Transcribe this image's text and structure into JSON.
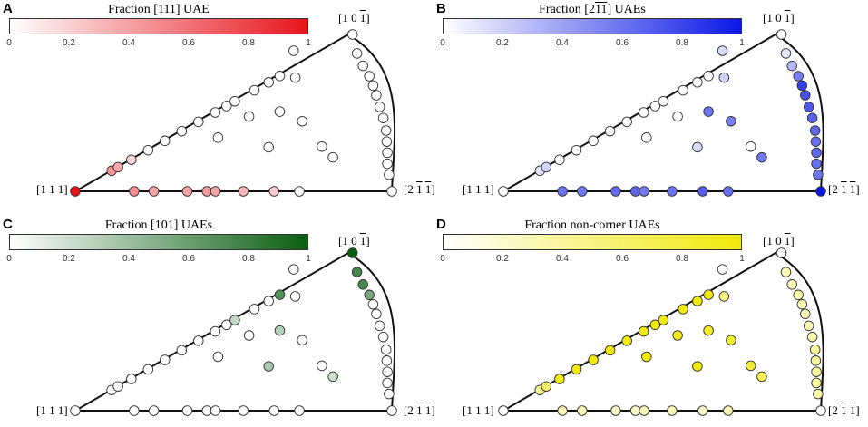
{
  "chart_data": [
    {
      "type": "scatter",
      "panel_label": "A",
      "colorbar": {
        "title_prefix": "Fraction [111] UAE",
        "title_overline": "",
        "title_suffix": "",
        "color_min": "#ffffff",
        "color_max": "#e8141c",
        "ticks": [
          "0",
          "0.2",
          "0.4",
          "0.6",
          "0.8",
          "1"
        ]
      },
      "corners": {
        "c111": "[1 1 1]",
        "c101_a": "[1 0 ",
        "c101_b": "1",
        "c101_c": "]",
        "c211_a": "[2 ",
        "c211_b": "1",
        "c211_c": " ",
        "c211_d": "1",
        "c211_e": "]"
      },
      "points": [
        {
          "u": 0.0,
          "v": 0.0,
          "f": 1.0
        },
        {
          "u": 0.186,
          "v": 0.0,
          "f": 0.48
        },
        {
          "u": 0.248,
          "v": 0.0,
          "f": 0.4
        },
        {
          "u": 0.354,
          "v": 0.0,
          "f": 0.38
        },
        {
          "u": 0.416,
          "v": 0.0,
          "f": 0.42
        },
        {
          "u": 0.443,
          "v": 0.0,
          "f": 0.38
        },
        {
          "u": 0.531,
          "v": 0.0,
          "f": 0.32
        },
        {
          "u": 0.628,
          "v": 0.0,
          "f": 0.22
        },
        {
          "u": 0.708,
          "v": 0.0,
          "f": 0.0
        },
        {
          "u": 0.115,
          "v": 0.131,
          "f": 0.45
        },
        {
          "u": 0.135,
          "v": 0.154,
          "f": 0.38
        },
        {
          "u": 0.177,
          "v": 0.201,
          "f": 0.18
        },
        {
          "u": 0.23,
          "v": 0.262,
          "f": 0.0
        },
        {
          "u": 0.283,
          "v": 0.322,
          "f": 0.0
        },
        {
          "u": 0.336,
          "v": 0.383,
          "f": 0.0
        },
        {
          "u": 0.389,
          "v": 0.443,
          "f": 0.0
        },
        {
          "u": 0.442,
          "v": 0.503,
          "f": 0.0
        },
        {
          "u": 0.478,
          "v": 0.544,
          "f": 0.0
        },
        {
          "u": 0.504,
          "v": 0.574,
          "f": 0.0
        },
        {
          "u": 0.566,
          "v": 0.644,
          "f": 0.0
        },
        {
          "u": 0.611,
          "v": 0.695,
          "f": 0.0
        },
        {
          "u": 0.646,
          "v": 0.735,
          "f": 0.0
        },
        {
          "u": 0.695,
          "v": 0.725,
          "f": 0.0
        },
        {
          "u": 0.69,
          "v": 0.896,
          "f": 0.0
        },
        {
          "u": 0.876,
          "v": 1.0,
          "f": 0.0
        },
        {
          "u": 0.89,
          "v": 0.879,
          "f": 0.0
        },
        {
          "u": 0.909,
          "v": 0.8,
          "f": 0.0
        },
        {
          "u": 0.929,
          "v": 0.734,
          "f": 0.0
        },
        {
          "u": 0.941,
          "v": 0.674,
          "f": 0.0
        },
        {
          "u": 0.951,
          "v": 0.613,
          "f": 0.0
        },
        {
          "u": 0.962,
          "v": 0.538,
          "f": 0.0
        },
        {
          "u": 0.973,
          "v": 0.467,
          "f": 0.0
        },
        {
          "u": 0.982,
          "v": 0.387,
          "f": 0.0
        },
        {
          "u": 0.984,
          "v": 0.317,
          "f": 0.0
        },
        {
          "u": 0.986,
          "v": 0.246,
          "f": 0.0
        },
        {
          "u": 0.986,
          "v": 0.176,
          "f": 0.0
        },
        {
          "u": 0.991,
          "v": 0.106,
          "f": 0.0
        },
        {
          "u": 1.0,
          "v": 0.0,
          "f": 0.0
        },
        {
          "u": 0.451,
          "v": 0.342,
          "f": 0.0
        },
        {
          "u": 0.549,
          "v": 0.477,
          "f": 0.0
        },
        {
          "u": 0.646,
          "v": 0.508,
          "f": 0.0
        },
        {
          "u": 0.717,
          "v": 0.447,
          "f": 0.0
        },
        {
          "u": 0.611,
          "v": 0.281,
          "f": 0.0
        },
        {
          "u": 0.779,
          "v": 0.285,
          "f": 0.0
        },
        {
          "u": 0.814,
          "v": 0.216,
          "f": 0.0
        }
      ]
    },
    {
      "type": "scatter",
      "panel_label": "B",
      "colorbar": {
        "title_prefix": "Fraction [2",
        "title_overline": "11",
        "title_suffix": "] UAEs",
        "color_min": "#ffffff",
        "color_max": "#0b17e6",
        "ticks": [
          "0",
          "0.2",
          "0.4",
          "0.6",
          "0.8",
          "1"
        ]
      },
      "corners": {
        "c111": "[1 1 1]",
        "c101_a": "[1 0 ",
        "c101_b": "1",
        "c101_c": "]",
        "c211_a": "[2 ",
        "c211_b": "1",
        "c211_c": " ",
        "c211_d": "1",
        "c211_e": "]"
      },
      "points": [
        {
          "u": 0.0,
          "v": 0.0,
          "f": 0.0
        },
        {
          "u": 0.186,
          "v": 0.0,
          "f": 0.6
        },
        {
          "u": 0.248,
          "v": 0.0,
          "f": 0.58
        },
        {
          "u": 0.354,
          "v": 0.0,
          "f": 0.64
        },
        {
          "u": 0.416,
          "v": 0.0,
          "f": 0.66
        },
        {
          "u": 0.443,
          "v": 0.0,
          "f": 0.58
        },
        {
          "u": 0.531,
          "v": 0.0,
          "f": 0.6
        },
        {
          "u": 0.628,
          "v": 0.0,
          "f": 0.7
        },
        {
          "u": 0.708,
          "v": 0.0,
          "f": 0.62
        },
        {
          "u": 0.115,
          "v": 0.131,
          "f": 0.12
        },
        {
          "u": 0.135,
          "v": 0.154,
          "f": 0.18
        },
        {
          "u": 0.177,
          "v": 0.201,
          "f": 0.0
        },
        {
          "u": 0.23,
          "v": 0.262,
          "f": 0.0
        },
        {
          "u": 0.283,
          "v": 0.322,
          "f": 0.0
        },
        {
          "u": 0.336,
          "v": 0.383,
          "f": 0.0
        },
        {
          "u": 0.389,
          "v": 0.443,
          "f": 0.0
        },
        {
          "u": 0.442,
          "v": 0.503,
          "f": 0.0
        },
        {
          "u": 0.478,
          "v": 0.544,
          "f": 0.0
        },
        {
          "u": 0.504,
          "v": 0.574,
          "f": 0.0
        },
        {
          "u": 0.566,
          "v": 0.644,
          "f": 0.0
        },
        {
          "u": 0.611,
          "v": 0.695,
          "f": 0.0
        },
        {
          "u": 0.646,
          "v": 0.735,
          "f": 0.0
        },
        {
          "u": 0.695,
          "v": 0.725,
          "f": 0.2
        },
        {
          "u": 0.69,
          "v": 0.896,
          "f": 0.15
        },
        {
          "u": 0.876,
          "v": 1.0,
          "f": 0.0
        },
        {
          "u": 0.89,
          "v": 0.879,
          "f": 0.12
        },
        {
          "u": 0.909,
          "v": 0.8,
          "f": 0.3
        },
        {
          "u": 0.929,
          "v": 0.734,
          "f": 0.55
        },
        {
          "u": 0.941,
          "v": 0.674,
          "f": 0.82
        },
        {
          "u": 0.951,
          "v": 0.613,
          "f": 0.75
        },
        {
          "u": 0.962,
          "v": 0.538,
          "f": 0.72
        },
        {
          "u": 0.973,
          "v": 0.467,
          "f": 0.68
        },
        {
          "u": 0.982,
          "v": 0.387,
          "f": 0.65
        },
        {
          "u": 0.984,
          "v": 0.317,
          "f": 0.62
        },
        {
          "u": 0.986,
          "v": 0.246,
          "f": 0.65
        },
        {
          "u": 0.986,
          "v": 0.176,
          "f": 0.62
        },
        {
          "u": 0.991,
          "v": 0.106,
          "f": 0.6
        },
        {
          "u": 1.0,
          "v": 0.0,
          "f": 1.0
        },
        {
          "u": 0.451,
          "v": 0.342,
          "f": 0.0
        },
        {
          "u": 0.549,
          "v": 0.477,
          "f": 0.0
        },
        {
          "u": 0.646,
          "v": 0.508,
          "f": 0.6
        },
        {
          "u": 0.717,
          "v": 0.447,
          "f": 0.55
        },
        {
          "u": 0.611,
          "v": 0.281,
          "f": 0.15
        },
        {
          "u": 0.779,
          "v": 0.285,
          "f": 0.0
        },
        {
          "u": 0.814,
          "v": 0.216,
          "f": 0.58
        }
      ]
    },
    {
      "type": "scatter",
      "panel_label": "C",
      "colorbar": {
        "title_prefix": "Fraction [10",
        "title_overline": "1",
        "title_suffix": "] UAEs",
        "color_min": "#ffffff",
        "color_max": "#0a5e12",
        "ticks": [
          "0",
          "0.2",
          "0.4",
          "0.6",
          "0.8",
          "1"
        ]
      },
      "corners": {
        "c111": "[1 1 1]",
        "c101_a": "[1 0 ",
        "c101_b": "1",
        "c101_c": "]",
        "c211_a": "[2 ",
        "c211_b": "1",
        "c211_c": " ",
        "c211_d": "1",
        "c211_e": "]"
      },
      "points": [
        {
          "u": 0.0,
          "v": 0.0,
          "f": 0.0
        },
        {
          "u": 0.186,
          "v": 0.0,
          "f": 0.0
        },
        {
          "u": 0.248,
          "v": 0.0,
          "f": 0.0
        },
        {
          "u": 0.354,
          "v": 0.0,
          "f": 0.0
        },
        {
          "u": 0.416,
          "v": 0.0,
          "f": 0.0
        },
        {
          "u": 0.443,
          "v": 0.0,
          "f": 0.0
        },
        {
          "u": 0.531,
          "v": 0.0,
          "f": 0.0
        },
        {
          "u": 0.628,
          "v": 0.0,
          "f": 0.0
        },
        {
          "u": 0.708,
          "v": 0.0,
          "f": 0.0
        },
        {
          "u": 0.115,
          "v": 0.131,
          "f": 0.0
        },
        {
          "u": 0.135,
          "v": 0.154,
          "f": 0.0
        },
        {
          "u": 0.177,
          "v": 0.201,
          "f": 0.0
        },
        {
          "u": 0.23,
          "v": 0.262,
          "f": 0.0
        },
        {
          "u": 0.283,
          "v": 0.322,
          "f": 0.0
        },
        {
          "u": 0.336,
          "v": 0.383,
          "f": 0.0
        },
        {
          "u": 0.389,
          "v": 0.443,
          "f": 0.0
        },
        {
          "u": 0.442,
          "v": 0.503,
          "f": 0.0
        },
        {
          "u": 0.478,
          "v": 0.544,
          "f": 0.0
        },
        {
          "u": 0.504,
          "v": 0.574,
          "f": 0.25
        },
        {
          "u": 0.566,
          "v": 0.644,
          "f": 0.0
        },
        {
          "u": 0.611,
          "v": 0.695,
          "f": 0.0
        },
        {
          "u": 0.646,
          "v": 0.735,
          "f": 0.7
        },
        {
          "u": 0.695,
          "v": 0.725,
          "f": 0.0
        },
        {
          "u": 0.69,
          "v": 0.896,
          "f": 0.0
        },
        {
          "u": 0.876,
          "v": 1.0,
          "f": 1.0
        },
        {
          "u": 0.89,
          "v": 0.879,
          "f": 0.75
        },
        {
          "u": 0.909,
          "v": 0.8,
          "f": 0.75
        },
        {
          "u": 0.929,
          "v": 0.734,
          "f": 0.55
        },
        {
          "u": 0.941,
          "v": 0.674,
          "f": 0.0
        },
        {
          "u": 0.951,
          "v": 0.613,
          "f": 0.0
        },
        {
          "u": 0.962,
          "v": 0.538,
          "f": 0.0
        },
        {
          "u": 0.973,
          "v": 0.467,
          "f": 0.0
        },
        {
          "u": 0.982,
          "v": 0.387,
          "f": 0.0
        },
        {
          "u": 0.984,
          "v": 0.317,
          "f": 0.0
        },
        {
          "u": 0.986,
          "v": 0.246,
          "f": 0.0
        },
        {
          "u": 0.986,
          "v": 0.176,
          "f": 0.0
        },
        {
          "u": 0.991,
          "v": 0.106,
          "f": 0.0
        },
        {
          "u": 1.0,
          "v": 0.0,
          "f": 0.0
        },
        {
          "u": 0.451,
          "v": 0.342,
          "f": 0.0
        },
        {
          "u": 0.549,
          "v": 0.477,
          "f": 0.0
        },
        {
          "u": 0.646,
          "v": 0.508,
          "f": 0.3
        },
        {
          "u": 0.717,
          "v": 0.447,
          "f": 0.0
        },
        {
          "u": 0.611,
          "v": 0.281,
          "f": 0.35
        },
        {
          "u": 0.779,
          "v": 0.285,
          "f": 0.0
        },
        {
          "u": 0.814,
          "v": 0.216,
          "f": 0.2
        }
      ]
    },
    {
      "type": "scatter",
      "panel_label": "D",
      "colorbar": {
        "title_prefix": "Fraction non-corner UAEs",
        "title_overline": "",
        "title_suffix": "",
        "color_min": "#ffffff",
        "color_max": "#f2ea0a",
        "ticks": [
          "0",
          "0.2",
          "0.4",
          "0.6",
          "0.8",
          "1"
        ]
      },
      "corners": {
        "c111": "[1 1 1]",
        "c101_a": "[1 0 ",
        "c101_b": "1",
        "c101_c": "]",
        "c211_a": "[2 ",
        "c211_b": "1",
        "c211_c": " ",
        "c211_d": "1",
        "c211_e": "]"
      },
      "points": [
        {
          "u": 0.0,
          "v": 0.0,
          "f": 0.0
        },
        {
          "u": 0.186,
          "v": 0.0,
          "f": 0.28
        },
        {
          "u": 0.248,
          "v": 0.0,
          "f": 0.28
        },
        {
          "u": 0.354,
          "v": 0.0,
          "f": 0.22
        },
        {
          "u": 0.416,
          "v": 0.0,
          "f": 0.22
        },
        {
          "u": 0.443,
          "v": 0.0,
          "f": 0.28
        },
        {
          "u": 0.531,
          "v": 0.0,
          "f": 0.28
        },
        {
          "u": 0.628,
          "v": 0.0,
          "f": 0.22
        },
        {
          "u": 0.708,
          "v": 0.0,
          "f": 0.28
        },
        {
          "u": 0.115,
          "v": 0.131,
          "f": 0.45
        },
        {
          "u": 0.135,
          "v": 0.154,
          "f": 0.6
        },
        {
          "u": 0.177,
          "v": 0.201,
          "f": 1.0
        },
        {
          "u": 0.23,
          "v": 0.262,
          "f": 1.0
        },
        {
          "u": 0.283,
          "v": 0.322,
          "f": 1.0
        },
        {
          "u": 0.336,
          "v": 0.383,
          "f": 1.0
        },
        {
          "u": 0.389,
          "v": 0.443,
          "f": 1.0
        },
        {
          "u": 0.442,
          "v": 0.503,
          "f": 1.0
        },
        {
          "u": 0.478,
          "v": 0.544,
          "f": 1.0
        },
        {
          "u": 0.504,
          "v": 0.574,
          "f": 1.0
        },
        {
          "u": 0.566,
          "v": 0.644,
          "f": 1.0
        },
        {
          "u": 0.611,
          "v": 0.695,
          "f": 1.0
        },
        {
          "u": 0.646,
          "v": 0.735,
          "f": 1.0
        },
        {
          "u": 0.695,
          "v": 0.725,
          "f": 0.5
        },
        {
          "u": 0.69,
          "v": 0.896,
          "f": 0.0
        },
        {
          "u": 0.876,
          "v": 1.0,
          "f": 0.0
        },
        {
          "u": 0.89,
          "v": 0.879,
          "f": 0.3
        },
        {
          "u": 0.909,
          "v": 0.8,
          "f": 0.3
        },
        {
          "u": 0.929,
          "v": 0.734,
          "f": 0.35
        },
        {
          "u": 0.941,
          "v": 0.674,
          "f": 0.3
        },
        {
          "u": 0.951,
          "v": 0.613,
          "f": 0.3
        },
        {
          "u": 0.962,
          "v": 0.538,
          "f": 0.3
        },
        {
          "u": 0.973,
          "v": 0.467,
          "f": 0.35
        },
        {
          "u": 0.982,
          "v": 0.387,
          "f": 0.4
        },
        {
          "u": 0.984,
          "v": 0.317,
          "f": 0.4
        },
        {
          "u": 0.986,
          "v": 0.246,
          "f": 0.4
        },
        {
          "u": 0.986,
          "v": 0.176,
          "f": 0.4
        },
        {
          "u": 0.991,
          "v": 0.106,
          "f": 0.35
        },
        {
          "u": 1.0,
          "v": 0.0,
          "f": 0.0
        },
        {
          "u": 0.451,
          "v": 0.342,
          "f": 1.0
        },
        {
          "u": 0.549,
          "v": 0.477,
          "f": 1.0
        },
        {
          "u": 0.646,
          "v": 0.508,
          "f": 0.9
        },
        {
          "u": 0.717,
          "v": 0.447,
          "f": 0.85
        },
        {
          "u": 0.611,
          "v": 0.281,
          "f": 1.0
        },
        {
          "u": 0.779,
          "v": 0.285,
          "f": 0.8
        },
        {
          "u": 0.814,
          "v": 0.216,
          "f": 0.7
        }
      ]
    }
  ]
}
